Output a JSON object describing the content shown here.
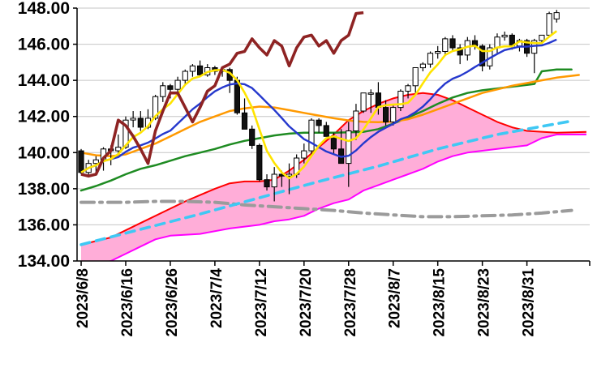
{
  "chart_data": {
    "type": "candlestick",
    "title": "",
    "y_axis": {
      "min": 134,
      "max": 148,
      "step": 2,
      "tick_labels": [
        "134.00",
        "136.00",
        "138.00",
        "140.00",
        "142.00",
        "144.00",
        "146.00",
        "148.00"
      ]
    },
    "x_axis": {
      "slots": 69,
      "ticks": [
        {
          "index": 0,
          "label": "2023/6/8"
        },
        {
          "index": 6,
          "label": "2023/6/16"
        },
        {
          "index": 12,
          "label": "2023/6/26"
        },
        {
          "index": 18,
          "label": "2023/7/4"
        },
        {
          "index": 24,
          "label": "2023/7/12"
        },
        {
          "index": 30,
          "label": "2023/7/20"
        },
        {
          "index": 36,
          "label": "2023/7/28"
        },
        {
          "index": 42,
          "label": "2023/8/7"
        },
        {
          "index": 48,
          "label": "2023/8/15"
        },
        {
          "index": 54,
          "label": "2023/8/23"
        },
        {
          "index": 60,
          "label": "2023/8/31"
        }
      ]
    },
    "candles": {
      "dates": [
        "6/8",
        "6/9",
        "6/12",
        "6/13",
        "6/14",
        "6/15",
        "6/16",
        "6/19",
        "6/20",
        "6/21",
        "6/22",
        "6/23",
        "6/26",
        "6/27",
        "6/28",
        "6/29",
        "6/30",
        "7/3",
        "7/4",
        "7/5",
        "7/6",
        "7/7",
        "7/10",
        "7/11",
        "7/12",
        "7/13",
        "7/14",
        "7/17",
        "7/18",
        "7/19",
        "7/20",
        "7/21",
        "7/24",
        "7/25",
        "7/26",
        "7/27",
        "7/28",
        "7/31",
        "8/1",
        "8/2",
        "8/3",
        "8/4",
        "8/7",
        "8/8",
        "8/9",
        "8/10",
        "8/11",
        "8/14",
        "8/15",
        "8/16",
        "8/17",
        "8/18",
        "8/21",
        "8/22",
        "8/23",
        "8/24",
        "8/25",
        "8/28",
        "8/29",
        "8/30",
        "8/31",
        "9/1",
        "9/4",
        "9/5",
        "9/6"
      ],
      "open": [
        140.1,
        138.9,
        139.4,
        139.6,
        140.2,
        140.1,
        140.3,
        141.8,
        141.9,
        141.4,
        141.9,
        143.1,
        143.7,
        143.5,
        144.0,
        144.5,
        144.8,
        144.3,
        144.7,
        144.5,
        144.6,
        144.0,
        142.2,
        141.3,
        140.4,
        138.5,
        138.1,
        138.8,
        138.7,
        138.8,
        139.7,
        140.1,
        141.8,
        141.5,
        140.9,
        140.2,
        139.4,
        141.2,
        142.3,
        143.3,
        143.3,
        142.5,
        141.7,
        142.5,
        143.4,
        143.7,
        144.7,
        144.9,
        145.5,
        145.6,
        146.3,
        145.8,
        145.4,
        146.2,
        145.9,
        144.8,
        145.8,
        146.4,
        146.5,
        145.9,
        146.2,
        145.5,
        146.2,
        146.5,
        147.4
      ],
      "high": [
        140.2,
        139.6,
        139.8,
        140.3,
        140.4,
        141.0,
        142.0,
        142.3,
        142.3,
        142.4,
        143.2,
        143.9,
        143.8,
        144.2,
        144.6,
        144.9,
        145.1,
        144.9,
        144.8,
        144.7,
        144.7,
        144.2,
        143.0,
        141.5,
        140.5,
        138.8,
        139.2,
        139.0,
        139.4,
        139.9,
        140.5,
        141.9,
        141.9,
        141.7,
        141.1,
        141.3,
        141.7,
        142.7,
        143.3,
        143.5,
        143.9,
        142.9,
        142.6,
        143.5,
        143.8,
        144.7,
        145.0,
        145.6,
        145.9,
        146.4,
        146.5,
        146.0,
        146.4,
        146.5,
        146.0,
        146.0,
        146.6,
        146.7,
        146.6,
        146.3,
        146.3,
        146.3,
        146.5,
        147.8,
        147.9
      ],
      "low": [
        138.8,
        138.7,
        138.9,
        139.0,
        139.3,
        139.9,
        140.2,
        141.4,
        141.2,
        141.3,
        141.8,
        142.8,
        143.0,
        143.3,
        143.8,
        144.2,
        144.2,
        144.2,
        144.3,
        144.2,
        143.3,
        142.1,
        141.3,
        140.2,
        138.4,
        137.9,
        137.3,
        138.1,
        137.7,
        138.6,
        139.4,
        139.8,
        141.1,
        140.9,
        139.9,
        139.4,
        138.1,
        140.7,
        142.2,
        142.2,
        142.1,
        141.5,
        141.5,
        142.3,
        143.0,
        143.3,
        144.5,
        144.7,
        145.2,
        145.4,
        145.6,
        144.9,
        145.1,
        145.7,
        144.5,
        144.6,
        145.5,
        146.2,
        145.7,
        145.6,
        145.3,
        144.4,
        146.0,
        146.4,
        147.2
      ],
      "close": [
        138.9,
        139.4,
        139.6,
        140.2,
        140.1,
        140.3,
        141.8,
        141.9,
        141.4,
        141.9,
        143.1,
        143.7,
        143.5,
        144.0,
        144.5,
        144.8,
        144.3,
        144.7,
        144.5,
        144.6,
        144.0,
        142.2,
        141.3,
        140.4,
        138.5,
        138.1,
        138.8,
        138.7,
        138.8,
        139.7,
        140.1,
        141.8,
        141.5,
        140.9,
        140.2,
        139.4,
        141.2,
        142.3,
        143.3,
        143.3,
        142.5,
        141.7,
        142.5,
        143.4,
        143.7,
        144.7,
        144.9,
        145.5,
        145.6,
        146.3,
        145.8,
        145.4,
        146.2,
        145.9,
        144.8,
        145.8,
        146.4,
        146.5,
        145.9,
        146.2,
        145.5,
        146.2,
        146.5,
        147.7,
        147.75
      ]
    },
    "overlays": {
      "computed": [
        {
          "id": "blue_ma",
          "kind": "sma",
          "window": 13,
          "color": "#2538CD",
          "width": 2.4
        },
        {
          "id": "yellow_ma",
          "kind": "sma",
          "window": 5,
          "color": "#FFE400",
          "width": 2.6
        },
        {
          "id": "darkred_lagging",
          "kind": "lag",
          "shift": 26,
          "color": "#8E2323",
          "width": 3.6
        }
      ],
      "anchored": [
        {
          "id": "gray_dashdot_ma",
          "color": "#9B9B9B",
          "width": 4,
          "dash": "16 7 3 7",
          "points": [
            [
              0,
              137.25
            ],
            [
              6,
              137.25
            ],
            [
              10,
              137.3
            ],
            [
              14,
              137.3
            ],
            [
              18,
              137.25
            ],
            [
              22,
              137.1
            ],
            [
              26,
              137.0
            ],
            [
              30,
              136.9
            ],
            [
              34,
              136.8
            ],
            [
              38,
              136.65
            ],
            [
              42,
              136.55
            ],
            [
              46,
              136.45
            ],
            [
              50,
              136.45
            ],
            [
              54,
              136.5
            ],
            [
              58,
              136.55
            ],
            [
              62,
              136.65
            ],
            [
              66,
              136.8
            ]
          ]
        },
        {
          "id": "cyan_dashed_trend",
          "color": "#3FC8F4",
          "width": 3.6,
          "dash": "11 8",
          "points": [
            [
              0,
              134.9
            ],
            [
              8,
              135.75
            ],
            [
              16,
              136.6
            ],
            [
              24,
              137.5
            ],
            [
              32,
              138.4
            ],
            [
              40,
              139.25
            ],
            [
              48,
              140.2
            ],
            [
              52,
              140.6
            ],
            [
              56,
              141.0
            ],
            [
              60,
              141.3
            ],
            [
              66,
              141.75
            ]
          ]
        },
        {
          "id": "green_ma",
          "color": "#1E8B22",
          "width": 2.5,
          "dash": "",
          "points": [
            [
              0,
              137.9
            ],
            [
              2,
              138.15
            ],
            [
              4,
              138.45
            ],
            [
              6,
              138.8
            ],
            [
              8,
              139.1
            ],
            [
              10,
              139.3
            ],
            [
              12,
              139.55
            ],
            [
              14,
              139.8
            ],
            [
              16,
              140.0
            ],
            [
              18,
              140.2
            ],
            [
              20,
              140.45
            ],
            [
              22,
              140.65
            ],
            [
              24,
              140.8
            ],
            [
              26,
              140.95
            ],
            [
              28,
              141.05
            ],
            [
              30,
              141.1
            ],
            [
              34,
              141.1
            ],
            [
              38,
              141.15
            ],
            [
              40,
              141.3
            ],
            [
              42,
              141.6
            ],
            [
              44,
              141.95
            ],
            [
              46,
              142.3
            ],
            [
              48,
              142.7
            ],
            [
              50,
              143.05
            ],
            [
              52,
              143.3
            ],
            [
              54,
              143.45
            ],
            [
              56,
              143.55
            ],
            [
              58,
              143.65
            ],
            [
              60,
              143.75
            ],
            [
              61,
              143.8
            ],
            [
              62,
              144.5
            ],
            [
              64,
              144.6
            ],
            [
              66,
              144.6
            ]
          ]
        },
        {
          "id": "orange_ma",
          "color": "#FF9900",
          "width": 2.5,
          "dash": "",
          "points": [
            [
              0,
              140.0
            ],
            [
              2,
              139.85
            ],
            [
              4,
              139.8
            ],
            [
              6,
              139.9
            ],
            [
              8,
              140.2
            ],
            [
              10,
              140.5
            ],
            [
              12,
              140.9
            ],
            [
              14,
              141.3
            ],
            [
              16,
              141.7
            ],
            [
              18,
              142.0
            ],
            [
              20,
              142.3
            ],
            [
              22,
              142.45
            ],
            [
              24,
              142.55
            ],
            [
              26,
              142.5
            ],
            [
              28,
              142.35
            ],
            [
              30,
              142.2
            ],
            [
              32,
              142.05
            ],
            [
              34,
              141.9
            ],
            [
              36,
              141.78
            ],
            [
              38,
              141.7
            ],
            [
              40,
              141.68
            ],
            [
              42,
              141.72
            ],
            [
              44,
              141.85
            ],
            [
              46,
              142.1
            ],
            [
              48,
              142.4
            ],
            [
              50,
              142.7
            ],
            [
              52,
              143.0
            ],
            [
              54,
              143.3
            ],
            [
              56,
              143.5
            ],
            [
              58,
              143.7
            ],
            [
              60,
              143.85
            ],
            [
              62,
              144.0
            ],
            [
              64,
              144.15
            ],
            [
              67,
              144.3
            ]
          ]
        }
      ],
      "cloud": {
        "fill": "#FFADD8",
        "upper": {
          "color": "#FF0000",
          "width": 2,
          "points": [
            [
              0,
              134.9
            ],
            [
              4,
              135.3
            ],
            [
              8,
              136.1
            ],
            [
              12,
              136.9
            ],
            [
              14,
              137.3
            ],
            [
              16,
              137.65
            ],
            [
              18,
              138.0
            ],
            [
              20,
              138.3
            ],
            [
              22,
              138.4
            ],
            [
              24,
              138.4
            ],
            [
              26,
              138.5
            ],
            [
              28,
              139.0
            ],
            [
              30,
              139.6
            ],
            [
              32,
              140.3
            ],
            [
              34,
              141.0
            ],
            [
              36,
              141.8
            ],
            [
              38,
              142.3
            ],
            [
              40,
              142.7
            ],
            [
              42,
              143.0
            ],
            [
              44,
              143.2
            ],
            [
              46,
              143.3
            ],
            [
              48,
              143.2
            ],
            [
              50,
              142.9
            ],
            [
              52,
              142.5
            ],
            [
              54,
              142.1
            ],
            [
              56,
              141.7
            ],
            [
              58,
              141.4
            ],
            [
              60,
              141.2
            ],
            [
              64,
              141.1
            ],
            [
              68,
              141.15
            ]
          ]
        },
        "lower": {
          "color": "#FF00FF",
          "width": 2,
          "points": [
            [
              0,
              133.8
            ],
            [
              2,
              133.8
            ],
            [
              4,
              134.0
            ],
            [
              6,
              134.4
            ],
            [
              8,
              134.8
            ],
            [
              10,
              135.2
            ],
            [
              12,
              135.4
            ],
            [
              16,
              135.5
            ],
            [
              20,
              135.8
            ],
            [
              24,
              136.0
            ],
            [
              26,
              136.2
            ],
            [
              28,
              136.3
            ],
            [
              30,
              136.5
            ],
            [
              32,
              136.9
            ],
            [
              34,
              137.2
            ],
            [
              36,
              137.4
            ],
            [
              38,
              137.9
            ],
            [
              40,
              138.2
            ],
            [
              42,
              138.5
            ],
            [
              44,
              138.8
            ],
            [
              46,
              139.1
            ],
            [
              48,
              139.5
            ],
            [
              50,
              139.8
            ],
            [
              52,
              140.0
            ],
            [
              56,
              140.2
            ],
            [
              60,
              140.4
            ],
            [
              62,
              140.8
            ],
            [
              64,
              141.0
            ],
            [
              68,
              141.0
            ]
          ]
        }
      }
    },
    "style": {
      "bg": "#FFFFFF",
      "axis": "#000000",
      "grid": "#C6C6C6",
      "wick": "#000000",
      "up_fill": "#FFFFFF",
      "down_fill": "#111111"
    }
  }
}
